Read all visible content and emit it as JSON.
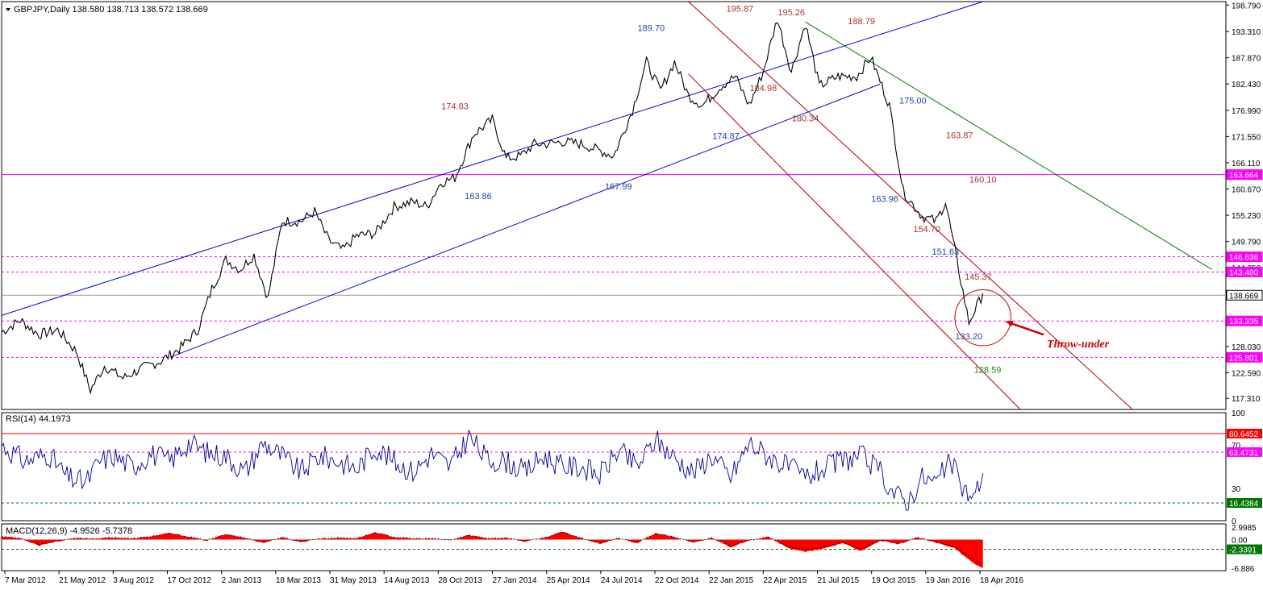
{
  "header": {
    "symbol_info": "GBPJPY,Daily  138.580 138.713 138.572 138.669",
    "rsi_info": "RSI(14) 44.1973",
    "macd_info": "MACD(12,26,9) -4.9526 -5.7378"
  },
  "colors": {
    "background": "#ffffff",
    "price": "#000000",
    "channel": "#0000cc",
    "red_channel": "#aa0000",
    "green_line": "#007700",
    "magenta": "#ff00ff",
    "rsi": "#000099",
    "macd_hist": "#ff0000",
    "label_red": "#aa3333",
    "label_blue": "#2244aa",
    "label_green": "#228822"
  },
  "chart_data": {
    "type": "line",
    "symbol": "GBPJPY",
    "timeframe": "Daily",
    "x_ticks": [
      "7 Mar 2012",
      "21 May 2012",
      "3 Aug 2012",
      "17 Oct 2012",
      "2 Jan 2013",
      "18 Mar 2013",
      "31 May 2013",
      "14 Aug 2013",
      "28 Oct 2013",
      "27 Jan 2014",
      "25 Apr 2014",
      "24 Jul 2014",
      "22 Oct 2014",
      "22 Jan 2015",
      "22 Apr 2015",
      "21 Jul 2015",
      "19 Oct 2015",
      "19 Jan 2016",
      "18 Apr 2016"
    ],
    "price_ylim": [
      115.0,
      199.5
    ],
    "price_ticks": [
      "198.790",
      "193.310",
      "187.870",
      "182.430",
      "176.990",
      "171.550",
      "166.110",
      "160.670",
      "155.230",
      "149.790",
      "144.350",
      "138.910",
      "133.470",
      "128.030",
      "122.590",
      "117.310"
    ],
    "price_series": {
      "name": "GBPJPY",
      "x": [
        0,
        4,
        8,
        12,
        16,
        19,
        22,
        26,
        30,
        34,
        38,
        42,
        45,
        48,
        51,
        54,
        57,
        60,
        64,
        67,
        70,
        73,
        76,
        80,
        84,
        88,
        91,
        94,
        97,
        101,
        105,
        108,
        111,
        114,
        117,
        120,
        124,
        127,
        131,
        135,
        138,
        141,
        144,
        147,
        150,
        154,
        157,
        160,
        163,
        166,
        169,
        172,
        175,
        179,
        183,
        186,
        190,
        193,
        197,
        200,
        202,
        204,
        207,
        210
      ],
      "y": [
        131,
        133.5,
        130.5,
        131.5,
        127,
        119,
        124,
        121.5,
        123.5,
        125,
        127.5,
        131.5,
        140,
        146,
        144,
        147,
        138,
        154,
        154,
        156,
        150,
        148,
        151,
        151.5,
        157,
        158,
        157,
        162,
        163,
        172,
        175,
        167,
        167.5,
        170,
        170,
        170.5,
        170,
        169,
        167.5,
        177,
        187,
        181,
        187,
        180,
        178,
        182,
        184,
        178,
        185,
        196,
        185,
        195,
        182,
        184,
        184,
        188,
        178,
        160,
        155,
        154,
        158,
        148,
        133,
        139
      ]
    },
    "horizontal_levels": [
      {
        "value": "163.664",
        "y": 163.664,
        "style": "solid",
        "color": "#ff00ff"
      },
      {
        "value": "146.636",
        "y": 146.636,
        "style": "dashed",
        "color": "#ff00ff"
      },
      {
        "value": "143.480",
        "y": 143.48,
        "style": "dashed",
        "color": "#ff00ff"
      },
      {
        "value": "138.669",
        "y": 138.669,
        "style": "thin",
        "color": "#999999",
        "current": true
      },
      {
        "value": "133.335",
        "y": 133.335,
        "style": "dashed",
        "color": "#ff00ff"
      },
      {
        "value": "125.801",
        "y": 125.801,
        "style": "dashed",
        "color": "#ff00ff"
      }
    ],
    "trend_lines": [
      {
        "name": "blue-upper",
        "color": "#0000cc",
        "p1": [
          0,
          134.5
        ],
        "p2": [
          210,
          199.5
        ]
      },
      {
        "name": "blue-lower",
        "color": "#0000cc",
        "p1": [
          36,
          125.8
        ],
        "p2": [
          188,
          182.4
        ]
      },
      {
        "name": "red-upper",
        "color": "#aa0000",
        "p1": [
          147,
          199.5
        ],
        "p2": [
          242,
          115.0
        ]
      },
      {
        "name": "red-lower",
        "color": "#aa0000",
        "p1": [
          147,
          184.5
        ],
        "p2": [
          218,
          115.0
        ]
      },
      {
        "name": "green-down",
        "color": "#007700",
        "p1": [
          172,
          195.3
        ],
        "p2": [
          259,
          144.0
        ]
      }
    ],
    "annotations": [
      {
        "text": "195.87",
        "x": 158,
        "y": 197.4,
        "color": "#aa3333"
      },
      {
        "text": "195.26",
        "x": 169,
        "y": 196.7,
        "color": "#aa3333"
      },
      {
        "text": "189.70",
        "x": 139,
        "y": 193.4,
        "color": "#2244aa"
      },
      {
        "text": "188.79",
        "x": 184,
        "y": 194.8,
        "color": "#aa3333"
      },
      {
        "text": "174.83",
        "x": 97,
        "y": 177.2,
        "color": "#aa3333"
      },
      {
        "text": "184.98",
        "x": 163,
        "y": 181.0,
        "color": "#aa3333"
      },
      {
        "text": "175.00",
        "x": 195,
        "y": 178.4,
        "color": "#2244aa"
      },
      {
        "text": "180.34",
        "x": 172,
        "y": 174.7,
        "color": "#aa3333"
      },
      {
        "text": "174.87",
        "x": 155,
        "y": 171.0,
        "color": "#2244aa"
      },
      {
        "text": "163.87",
        "x": 205,
        "y": 171.2,
        "color": "#aa3333"
      },
      {
        "text": "167.99",
        "x": 132,
        "y": 160.6,
        "color": "#2244aa"
      },
      {
        "text": "160.10",
        "x": 210,
        "y": 162.0,
        "color": "#aa3333"
      },
      {
        "text": "163.86",
        "x": 102,
        "y": 158.6,
        "color": "#2244aa"
      },
      {
        "text": "163.96",
        "x": 189,
        "y": 158.0,
        "color": "#2244aa"
      },
      {
        "text": "154.70",
        "x": 198,
        "y": 151.7,
        "color": "#aa3333"
      },
      {
        "text": "151.63",
        "x": 202,
        "y": 147.1,
        "color": "#2244aa"
      },
      {
        "text": "145.37",
        "x": 209,
        "y": 141.9,
        "color": "#aa3333"
      },
      {
        "text": "133.20",
        "x": 207,
        "y": 129.5,
        "color": "#2244aa"
      },
      {
        "text": "128.59",
        "x": 211,
        "y": 122.6,
        "color": "#228822"
      }
    ],
    "callout": {
      "text": "Throw-under",
      "color": "#cc0000",
      "circle_center": [
        210,
        134.0
      ],
      "circle_radius_data_x": 6.0,
      "arrow_from": [
        223,
        130.5
      ],
      "arrow_to": [
        215,
        133.2
      ]
    },
    "rsi": {
      "name": "RSI(14)",
      "value_label": "44.1973",
      "ylim": [
        0,
        100
      ],
      "ticks": [
        "100",
        "70",
        "30",
        "0"
      ],
      "levels": [
        {
          "value": "80.6452",
          "y": 80.6452,
          "color": "#ff0000",
          "style": "solid"
        },
        {
          "value": "63.4731",
          "y": 63.4731,
          "color": "#ff00ff",
          "style": "dashed"
        },
        {
          "value": "16.4384",
          "y": 16.4384,
          "color": "#007700",
          "style": "dashed"
        }
      ],
      "x": [
        0,
        5,
        10,
        14,
        18,
        21,
        24,
        28,
        32,
        36,
        40,
        44,
        48,
        52,
        56,
        60,
        64,
        68,
        72,
        76,
        80,
        84,
        88,
        92,
        96,
        100,
        104,
        108,
        112,
        116,
        120,
        124,
        128,
        132,
        136,
        140,
        144,
        148,
        152,
        156,
        160,
        164,
        168,
        172,
        176,
        180,
        184,
        188,
        191,
        194,
        197,
        200,
        203,
        206,
        208,
        210
      ],
      "y": [
        70,
        55,
        62,
        40,
        35,
        55,
        60,
        50,
        62,
        55,
        72,
        63,
        60,
        45,
        72,
        60,
        45,
        60,
        55,
        48,
        68,
        55,
        45,
        62,
        50,
        78,
        56,
        55,
        45,
        60,
        50,
        50,
        42,
        65,
        50,
        75,
        58,
        45,
        60,
        40,
        72,
        60,
        50,
        40,
        48,
        56,
        60,
        45,
        25,
        18,
        40,
        35,
        55,
        28,
        20,
        44
      ]
    },
    "macd": {
      "name": "MACD(12,26,9)",
      "main": "-4.9526",
      "signal": "-5.7378",
      "ylim": [
        -7.5,
        3.8
      ],
      "ticks": [
        "2.9985",
        "0.00",
        "-6.886"
      ],
      "level": {
        "value": "-2.3391",
        "y": -2.3391,
        "color": "#007700"
      },
      "x": [
        0,
        4,
        8,
        12,
        16,
        20,
        24,
        28,
        32,
        36,
        40,
        44,
        48,
        52,
        56,
        60,
        64,
        68,
        72,
        76,
        80,
        84,
        88,
        92,
        96,
        100,
        104,
        108,
        112,
        116,
        120,
        124,
        128,
        132,
        136,
        140,
        144,
        148,
        152,
        156,
        160,
        164,
        168,
        172,
        176,
        180,
        184,
        188,
        192,
        196,
        200,
        204,
        206,
        208,
        210
      ],
      "y": [
        0.8,
        0.3,
        -1.4,
        -0.4,
        0.3,
        0.2,
        0.5,
        0.2,
        0.8,
        1.6,
        0.7,
        -0.3,
        1.4,
        0.4,
        -0.8,
        0.5,
        -0.6,
        0.2,
        0.4,
        0.3,
        1.8,
        0.6,
        0.2,
        0.2,
        -0.2,
        1.1,
        0.3,
        0.4,
        -0.5,
        0.4,
        1.9,
        0.4,
        -1.0,
        0.3,
        -0.9,
        1.6,
        0.6,
        -0.8,
        0.4,
        -1.8,
        -0.3,
        0.8,
        -1.9,
        -3.0,
        -2.2,
        -0.8,
        -2.8,
        -0.3,
        -1.1,
        0.5,
        -0.8,
        -2.0,
        -4.0,
        -5.8,
        -6.9
      ]
    }
  }
}
